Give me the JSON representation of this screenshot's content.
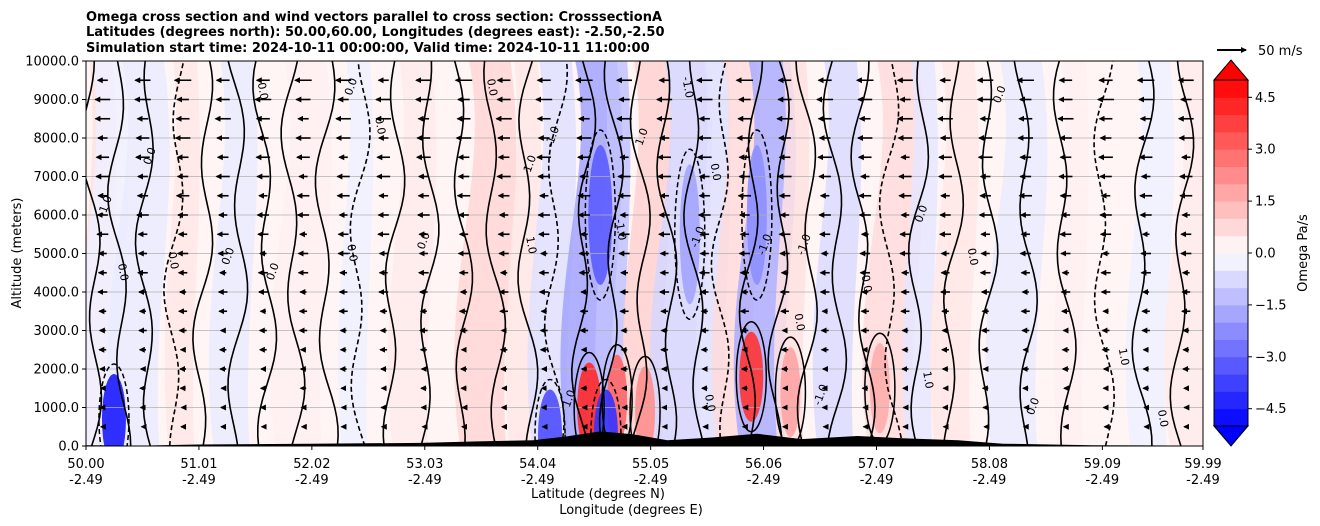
{
  "chart_data": {
    "type": "heatmap",
    "title_lines": [
      "Omega cross section and wind vectors parallel to cross section: CrosssectionA",
      "Latitudes (degrees north): 50.00,60.00, Longitudes (degrees east): -2.50,-2.50",
      "Simulation start time: 2024-10-11 00:00:00, Valid time: 2024-10-11 11:00:00"
    ],
    "xlabel_lines": [
      "Latitude (degrees N)",
      "Longitude (degrees E)"
    ],
    "ylabel": "Altitude (meters)",
    "x_range": [
      50.0,
      59.99
    ],
    "ylim": [
      0,
      10000
    ],
    "x_ticks": [
      {
        "lat": "50.00",
        "lon": "-2.49",
        "v": 50.0
      },
      {
        "lat": "51.01",
        "lon": "-2.49",
        "v": 51.01
      },
      {
        "lat": "52.02",
        "lon": "-2.49",
        "v": 52.02
      },
      {
        "lat": "53.03",
        "lon": "-2.49",
        "v": 53.03
      },
      {
        "lat": "54.04",
        "lon": "-2.49",
        "v": 54.04
      },
      {
        "lat": "55.05",
        "lon": "-2.49",
        "v": 55.05
      },
      {
        "lat": "56.06",
        "lon": "-2.49",
        "v": 56.06
      },
      {
        "lat": "57.07",
        "lon": "-2.49",
        "v": 57.07
      },
      {
        "lat": "58.08",
        "lon": "-2.49",
        "v": 58.08
      },
      {
        "lat": "59.09",
        "lon": "-2.49",
        "v": 59.09
      },
      {
        "lat": "59.99",
        "lon": "-2.49",
        "v": 59.99
      }
    ],
    "y_ticks": [
      {
        "label": "0.0",
        "v": 0
      },
      {
        "label": "1000.0",
        "v": 1000
      },
      {
        "label": "2000.0",
        "v": 2000
      },
      {
        "label": "3000.0",
        "v": 3000
      },
      {
        "label": "4000.0",
        "v": 4000
      },
      {
        "label": "5000.0",
        "v": 5000
      },
      {
        "label": "6000.0",
        "v": 6000
      },
      {
        "label": "7000.0",
        "v": 7000
      },
      {
        "label": "8000.0",
        "v": 8000
      },
      {
        "label": "9000.0",
        "v": 9000
      },
      {
        "label": "10000.0",
        "v": 10000
      }
    ],
    "grid": true,
    "colorbar": {
      "label": "Omega Pa/s",
      "range": [
        -5.0,
        5.0
      ],
      "ticks": [
        {
          "label": "4.5",
          "v": 4.5
        },
        {
          "label": "3.0",
          "v": 3.0
        },
        {
          "label": "1.5",
          "v": 1.5
        },
        {
          "label": "0.0",
          "v": 0.0
        },
        {
          "label": "−1.5",
          "v": -1.5
        },
        {
          "label": "−3.0",
          "v": -3.0
        },
        {
          "label": "−4.5",
          "v": -4.5
        }
      ],
      "extend": "both"
    },
    "quiver_key": {
      "label": "50 m/s",
      "value": 50
    },
    "omega_bands": [
      {
        "x": 50.1,
        "v": 0.6
      },
      {
        "x": 50.15,
        "v": -0.3
      },
      {
        "x": 50.45,
        "v": -0.4
      },
      {
        "x": 50.85,
        "v": 0.5
      },
      {
        "x": 51.3,
        "v": -0.4
      },
      {
        "x": 51.9,
        "v": 0.3
      },
      {
        "x": 52.4,
        "v": -0.3
      },
      {
        "x": 52.9,
        "v": 0.4
      },
      {
        "x": 53.55,
        "v": 0.8
      },
      {
        "x": 53.9,
        "v": 0.5
      },
      {
        "x": 54.15,
        "v": -0.6
      },
      {
        "x": 54.5,
        "v": -1.8
      },
      {
        "x": 54.7,
        "v": -1.2
      },
      {
        "x": 55.0,
        "v": 0.9
      },
      {
        "x": 55.3,
        "v": -0.8
      },
      {
        "x": 55.6,
        "v": -0.6
      },
      {
        "x": 55.8,
        "v": 0.7
      },
      {
        "x": 56.05,
        "v": -1.6
      },
      {
        "x": 56.3,
        "v": 0.6
      },
      {
        "x": 56.7,
        "v": -0.7
      },
      {
        "x": 57.2,
        "v": 0.7
      },
      {
        "x": 57.45,
        "v": -0.5
      },
      {
        "x": 57.75,
        "v": 0.5
      },
      {
        "x": 58.3,
        "v": -0.4
      },
      {
        "x": 58.8,
        "v": 0.3
      },
      {
        "x": 59.5,
        "v": -0.3
      },
      {
        "x": 59.9,
        "v": 0.4
      }
    ],
    "omega_spots": [
      {
        "x": 54.5,
        "z": 1000,
        "v": 4.2
      },
      {
        "x": 54.75,
        "z": 1200,
        "v": 3.0
      },
      {
        "x": 55.0,
        "z": 900,
        "v": 2.2
      },
      {
        "x": 55.95,
        "z": 1800,
        "v": 4.0
      },
      {
        "x": 56.3,
        "z": 1400,
        "v": 1.8
      },
      {
        "x": 54.6,
        "z": 6000,
        "v": -3.2
      },
      {
        "x": 56.0,
        "z": 6000,
        "v": -2.2
      },
      {
        "x": 55.4,
        "z": 5500,
        "v": -1.8
      },
      {
        "x": 50.25,
        "z": 700,
        "v": -4.5
      },
      {
        "x": 54.15,
        "z": 300,
        "v": -3.5
      },
      {
        "x": 54.65,
        "z": 300,
        "v": -4.0
      },
      {
        "x": 57.1,
        "z": 1500,
        "v": 1.6
      }
    ],
    "contour_levels": [
      -1.0,
      0.0,
      1.0
    ],
    "contour_labels": [
      {
        "x": 50.2,
        "z": 6200,
        "t": "-1.0"
      },
      {
        "x": 50.3,
        "z": 4500,
        "t": "0.0"
      },
      {
        "x": 50.6,
        "z": 7500,
        "t": "0.0"
      },
      {
        "x": 50.75,
        "z": 4800,
        "t": "0.0"
      },
      {
        "x": 51.3,
        "z": 4900,
        "t": "0.0"
      },
      {
        "x": 51.55,
        "z": 9200,
        "t": "0.0"
      },
      {
        "x": 51.7,
        "z": 4500,
        "t": "0.0"
      },
      {
        "x": 52.35,
        "z": 5000,
        "t": "0.0"
      },
      {
        "x": 52.4,
        "z": 9300,
        "t": "0.0"
      },
      {
        "x": 52.6,
        "z": 8300,
        "t": "0.0"
      },
      {
        "x": 53.05,
        "z": 5300,
        "t": "0.0"
      },
      {
        "x": 53.6,
        "z": 9300,
        "t": "0.0"
      },
      {
        "x": 54.0,
        "z": 7300,
        "t": "1.0"
      },
      {
        "x": 53.95,
        "z": 5200,
        "t": "1.0"
      },
      {
        "x": 54.2,
        "z": 8000,
        "t": "-1.0"
      },
      {
        "x": 54.75,
        "z": 5600,
        "t": "-1.0"
      },
      {
        "x": 55.0,
        "z": 8000,
        "t": "1.0"
      },
      {
        "x": 55.35,
        "z": 9300,
        "t": "-1.0"
      },
      {
        "x": 55.5,
        "z": 5400,
        "t": "-1.0"
      },
      {
        "x": 55.6,
        "z": 7100,
        "t": "0.0"
      },
      {
        "x": 56.1,
        "z": 5200,
        "t": "-1.0"
      },
      {
        "x": 56.35,
        "z": 3200,
        "t": "0.0"
      },
      {
        "x": 56.45,
        "z": 5200,
        "t": "-1.0"
      },
      {
        "x": 56.95,
        "z": 4200,
        "t": "0.0"
      },
      {
        "x": 57.5,
        "z": 6000,
        "t": "0.0"
      },
      {
        "x": 57.9,
        "z": 4900,
        "t": "0.0"
      },
      {
        "x": 58.2,
        "z": 9100,
        "t": "0.0"
      },
      {
        "x": 59.25,
        "z": 2300,
        "t": "1.0"
      },
      {
        "x": 54.35,
        "z": 1200,
        "t": "1.0"
      },
      {
        "x": 55.55,
        "z": 1100,
        "t": "0.0"
      },
      {
        "x": 56.6,
        "z": 1300,
        "t": "-1.0"
      },
      {
        "x": 57.5,
        "z": 1700,
        "t": "1.0"
      },
      {
        "x": 58.5,
        "z": 1000,
        "t": "0.0"
      },
      {
        "x": 59.6,
        "z": 700,
        "t": "0.0"
      }
    ],
    "terrain": [
      {
        "x": 50.0,
        "z": 20
      },
      {
        "x": 50.5,
        "z": 10
      },
      {
        "x": 51.0,
        "z": 40
      },
      {
        "x": 52.0,
        "z": 60
      },
      {
        "x": 53.0,
        "z": 80
      },
      {
        "x": 53.5,
        "z": 120
      },
      {
        "x": 54.0,
        "z": 150
      },
      {
        "x": 54.3,
        "z": 250
      },
      {
        "x": 54.6,
        "z": 380
      },
      {
        "x": 54.9,
        "z": 300
      },
      {
        "x": 55.2,
        "z": 150
      },
      {
        "x": 55.6,
        "z": 220
      },
      {
        "x": 56.0,
        "z": 320
      },
      {
        "x": 56.4,
        "z": 180
      },
      {
        "x": 56.9,
        "z": 260
      },
      {
        "x": 57.3,
        "z": 200
      },
      {
        "x": 57.8,
        "z": 150
      },
      {
        "x": 58.2,
        "z": 60
      },
      {
        "x": 59.0,
        "z": 20
      },
      {
        "x": 59.99,
        "z": 10
      }
    ],
    "wind_rows_m": [
      9500,
      9000,
      8500,
      8000,
      7500,
      7000,
      6500,
      6000,
      5500,
      5000,
      4500,
      4000,
      3500,
      3000,
      2500,
      2000,
      1500,
      1000,
      500
    ],
    "wind_speed_ms": 30
  }
}
